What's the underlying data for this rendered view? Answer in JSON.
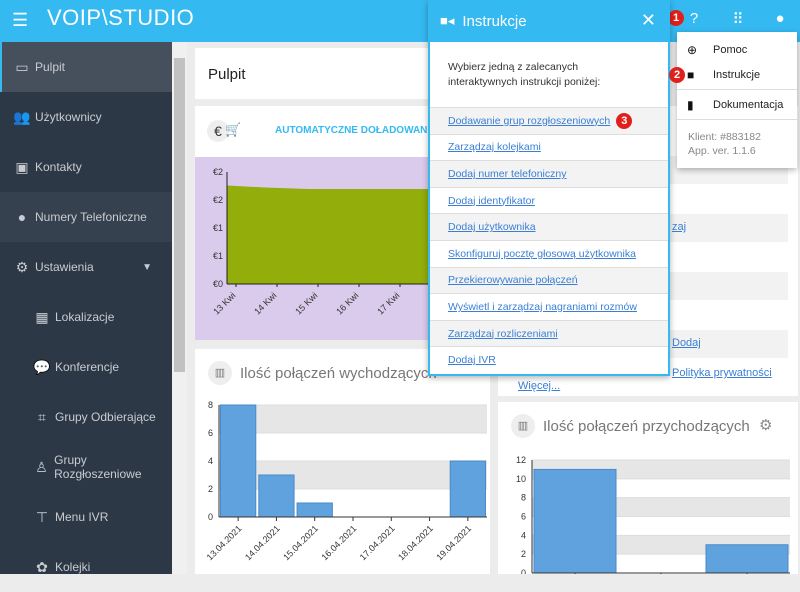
{
  "header": {
    "logo": "VOIP\\STUDIO",
    "menu_icon": "☰"
  },
  "sidebar": {
    "items": [
      {
        "label": "Pulpit",
        "icon": "monitor-icon"
      },
      {
        "label": "Użytkownicy",
        "icon": "users-icon"
      },
      {
        "label": "Kontakty",
        "icon": "contact-icon"
      },
      {
        "label": "Numery Telefoniczne",
        "icon": "globe-icon"
      },
      {
        "label": "Ustawienia",
        "icon": "gears-icon"
      },
      {
        "label": "Lokalizacje",
        "icon": "building-icon"
      },
      {
        "label": "Konferencje",
        "icon": "chat-icon"
      },
      {
        "label": "Grupy Odbierające",
        "icon": "pickup-icon"
      },
      {
        "label": "Grupy Rozgłoszeniowe",
        "icon": "broadcast-icon"
      },
      {
        "label": "Menu IVR",
        "icon": "ivr-icon"
      },
      {
        "label": "Kolejki",
        "icon": "queue-icon"
      }
    ]
  },
  "main": {
    "page_title": "Pulpit",
    "balance": {
      "euro": "€",
      "autoload": "AUTOMATYCZNE DOŁADOWANIE"
    },
    "outgoing_title": "Ilość połączeń wychodzących",
    "incoming_title": "Ilość połączeń przychodzących",
    "right_links": [
      "zaj",
      "Dodaj",
      "Polityka prywatności",
      "Więcej..."
    ]
  },
  "panel": {
    "title": "Instrukcje",
    "close": "✕",
    "description": "Wybierz jedną z zalecanych interaktywnych instrukcji poniżej:",
    "links": [
      "Dodawanie grup rozgłoszeniowych",
      "Zarządzaj kolejkami",
      "Dodaj numer telefoniczny",
      "Dodaj identyfikator",
      "Dodaj użytkownika",
      "Skonfiguruj pocztę głosową użytkownika",
      "Przekierowywanie połączeń",
      "Wyświetl i zarządzaj nagraniami rozmów",
      "Zarządzaj rozliczeniami",
      "Dodaj IVR"
    ]
  },
  "dropdown": {
    "items": [
      "Pomoc",
      "Instrukcje",
      "Dokumentacja"
    ],
    "client": "Klient: #883182",
    "version": "App. ver. 1.1.6"
  },
  "badges": [
    "1",
    "2",
    "3"
  ],
  "chart_data": [
    {
      "type": "area",
      "title": "",
      "categories": [
        "13 Kwi",
        "14 Kwi",
        "15 Kwi",
        "16 Kwi",
        "17 Kwi"
      ],
      "values": [
        2.2,
        2.15,
        2.12,
        2.12,
        2.12
      ],
      "ytick_labels": [
        "€0",
        "€1",
        "€1",
        "€2",
        "€2"
      ],
      "ylim": [
        0,
        2.5
      ],
      "color": "#93ad0a"
    },
    {
      "type": "bar",
      "title": "Ilość połączeń wychodzących",
      "categories": [
        "13.04.2021",
        "14.04.2021",
        "15.04.2021",
        "16.04.2021",
        "17.04.2021",
        "18.04.2021",
        "19.04.2021"
      ],
      "values": [
        8,
        3,
        1,
        0,
        0,
        0,
        4
      ],
      "yticks": [
        0,
        2,
        4,
        6,
        8
      ],
      "ylim": [
        0,
        8
      ],
      "color": "#5fa2dd"
    },
    {
      "type": "bar",
      "title": "Ilość połączeń przychodzących",
      "categories": [
        "",
        "",
        ""
      ],
      "values": [
        11,
        0,
        3
      ],
      "yticks": [
        0,
        2,
        4,
        6,
        8,
        10,
        12
      ],
      "ylim": [
        0,
        12
      ],
      "color": "#5fa2dd"
    }
  ]
}
